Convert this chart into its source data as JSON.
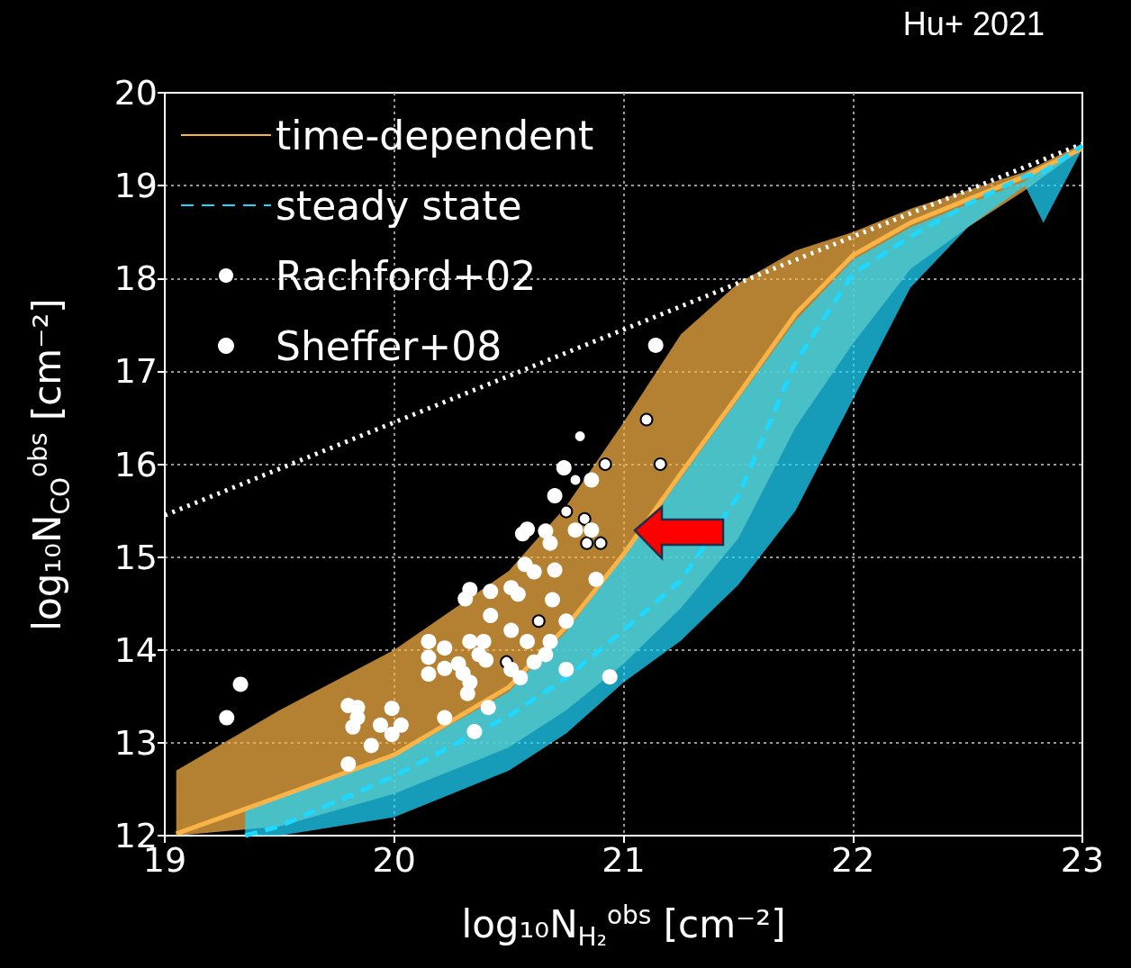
{
  "chart_data": {
    "type": "line",
    "xlabel": "log₁₀N$_{H₂}$$^{obs}$ [cm⁻²]",
    "ylabel": "log₁₀N$_{CO}$$^{obs}$ [cm⁻²]",
    "annotations": [
      "Hu+ 2021"
    ],
    "xlim": [
      19,
      23
    ],
    "xticks": [
      19,
      20,
      21,
      22,
      23
    ],
    "ylim": [
      12,
      20
    ],
    "yticks": [
      12,
      13,
      14,
      15,
      16,
      17,
      18,
      19,
      20
    ],
    "grid": true,
    "legend": "top left",
    "series": [
      {
        "color": "#ffffff",
        "line_style": "dotted",
        "marker": "none",
        "x": [
          19,
          23
        ],
        "values": [
          15.45,
          19.45
        ]
      },
      {
        "name": "time-dependent",
        "color": "#f9b347",
        "line_style": "solid",
        "marker": "none",
        "x": [
          19.05,
          19.5,
          20,
          20.5,
          20.75,
          21,
          21.25,
          21.5,
          21.75,
          22,
          22.25,
          22.5,
          22.75,
          23
        ],
        "values": [
          12.02,
          12.42,
          12.87,
          13.6,
          14.25,
          15.03,
          15.9,
          16.75,
          17.62,
          18.25,
          18.6,
          18.85,
          19.1,
          19.4
        ],
        "upper": [
          12.7,
          13.35,
          14.0,
          14.85,
          15.55,
          16.45,
          17.4,
          17.95,
          18.3,
          18.5,
          18.75,
          18.95,
          19.15,
          19.45
        ],
        "lower": [
          12.0,
          12.1,
          12.45,
          12.95,
          13.35,
          13.85,
          14.45,
          15.2,
          16.4,
          17.3,
          18.1,
          18.55,
          18.95,
          19.4
        ]
      },
      {
        "name": "steady state",
        "color": "#1fd8ff",
        "line_style": "dashed",
        "marker": "none",
        "x": [
          19.35,
          19.5,
          20,
          20.5,
          20.75,
          21,
          21.25,
          21.5,
          21.75,
          22,
          22.25,
          22.5,
          22.75,
          22.83,
          23
        ],
        "values": [
          12.0,
          12.1,
          12.64,
          13.29,
          13.7,
          14.21,
          14.75,
          15.66,
          17.1,
          18.05,
          18.45,
          18.8,
          19.1,
          19.15,
          19.43
        ],
        "upper": [
          12.3,
          12.4,
          12.85,
          13.55,
          14.2,
          15.0,
          15.85,
          16.7,
          17.55,
          18.2,
          18.55,
          18.8,
          19.05,
          19.2,
          19.4
        ],
        "lower": [
          12.0,
          12.0,
          12.2,
          12.7,
          13.1,
          13.65,
          14.1,
          14.7,
          15.5,
          16.7,
          17.9,
          18.55,
          19.0,
          18.6,
          19.4
        ]
      },
      {
        "name": "Rachford+02",
        "type": "scatter",
        "color": "#ffffff",
        "marker": "open circle",
        "x": [
          21.1,
          20.81,
          20.92,
          21.16,
          20.79,
          20.75,
          20.83,
          20.84,
          20.9,
          20.63,
          20.49
        ],
        "values": [
          16.48,
          16.3,
          16.0,
          16.0,
          15.83,
          15.49,
          15.41,
          15.15,
          15.15,
          14.31,
          13.87
        ]
      },
      {
        "name": "Sheffer+08",
        "type": "scatter",
        "color": "#ffffff",
        "marker": "circle",
        "x": [
          21.14,
          20.74,
          20.86,
          20.7,
          20.56,
          20.58,
          20.66,
          20.68,
          20.79,
          20.86,
          20.57,
          20.61,
          20.7,
          20.88,
          20.33,
          20.31,
          20.42,
          20.51,
          20.54,
          20.69,
          20.42,
          20.51,
          20.33,
          20.39,
          20.58,
          20.68,
          20.37,
          20.4,
          20.28,
          20.3,
          20.61,
          20.66,
          20.75,
          20.51,
          20.55,
          20.75,
          20.94,
          20.33,
          20.32,
          20.41,
          20.35,
          19.33,
          19.27,
          20.15,
          20.15,
          20.15,
          20.22,
          20.22,
          19.8,
          19.84,
          19.84,
          19.82,
          19.99,
          19.94,
          20.03,
          19.99,
          20.22,
          19.9,
          19.8
        ],
        "values": [
          17.28,
          15.96,
          15.83,
          15.66,
          15.25,
          15.3,
          15.28,
          15.15,
          15.29,
          15.29,
          14.92,
          14.84,
          14.86,
          14.76,
          14.65,
          14.55,
          14.63,
          14.67,
          14.6,
          14.54,
          14.37,
          14.21,
          14.09,
          14.09,
          14.09,
          14.09,
          13.95,
          13.89,
          13.85,
          13.75,
          13.87,
          13.95,
          14.31,
          13.79,
          13.7,
          13.79,
          13.71,
          13.65,
          13.53,
          13.38,
          13.12,
          13.63,
          13.27,
          14.09,
          13.92,
          13.74,
          14.02,
          13.8,
          13.4,
          13.38,
          13.27,
          13.17,
          13.37,
          13.19,
          13.19,
          13.09,
          13.27,
          12.97,
          12.77
        ]
      }
    ]
  }
}
